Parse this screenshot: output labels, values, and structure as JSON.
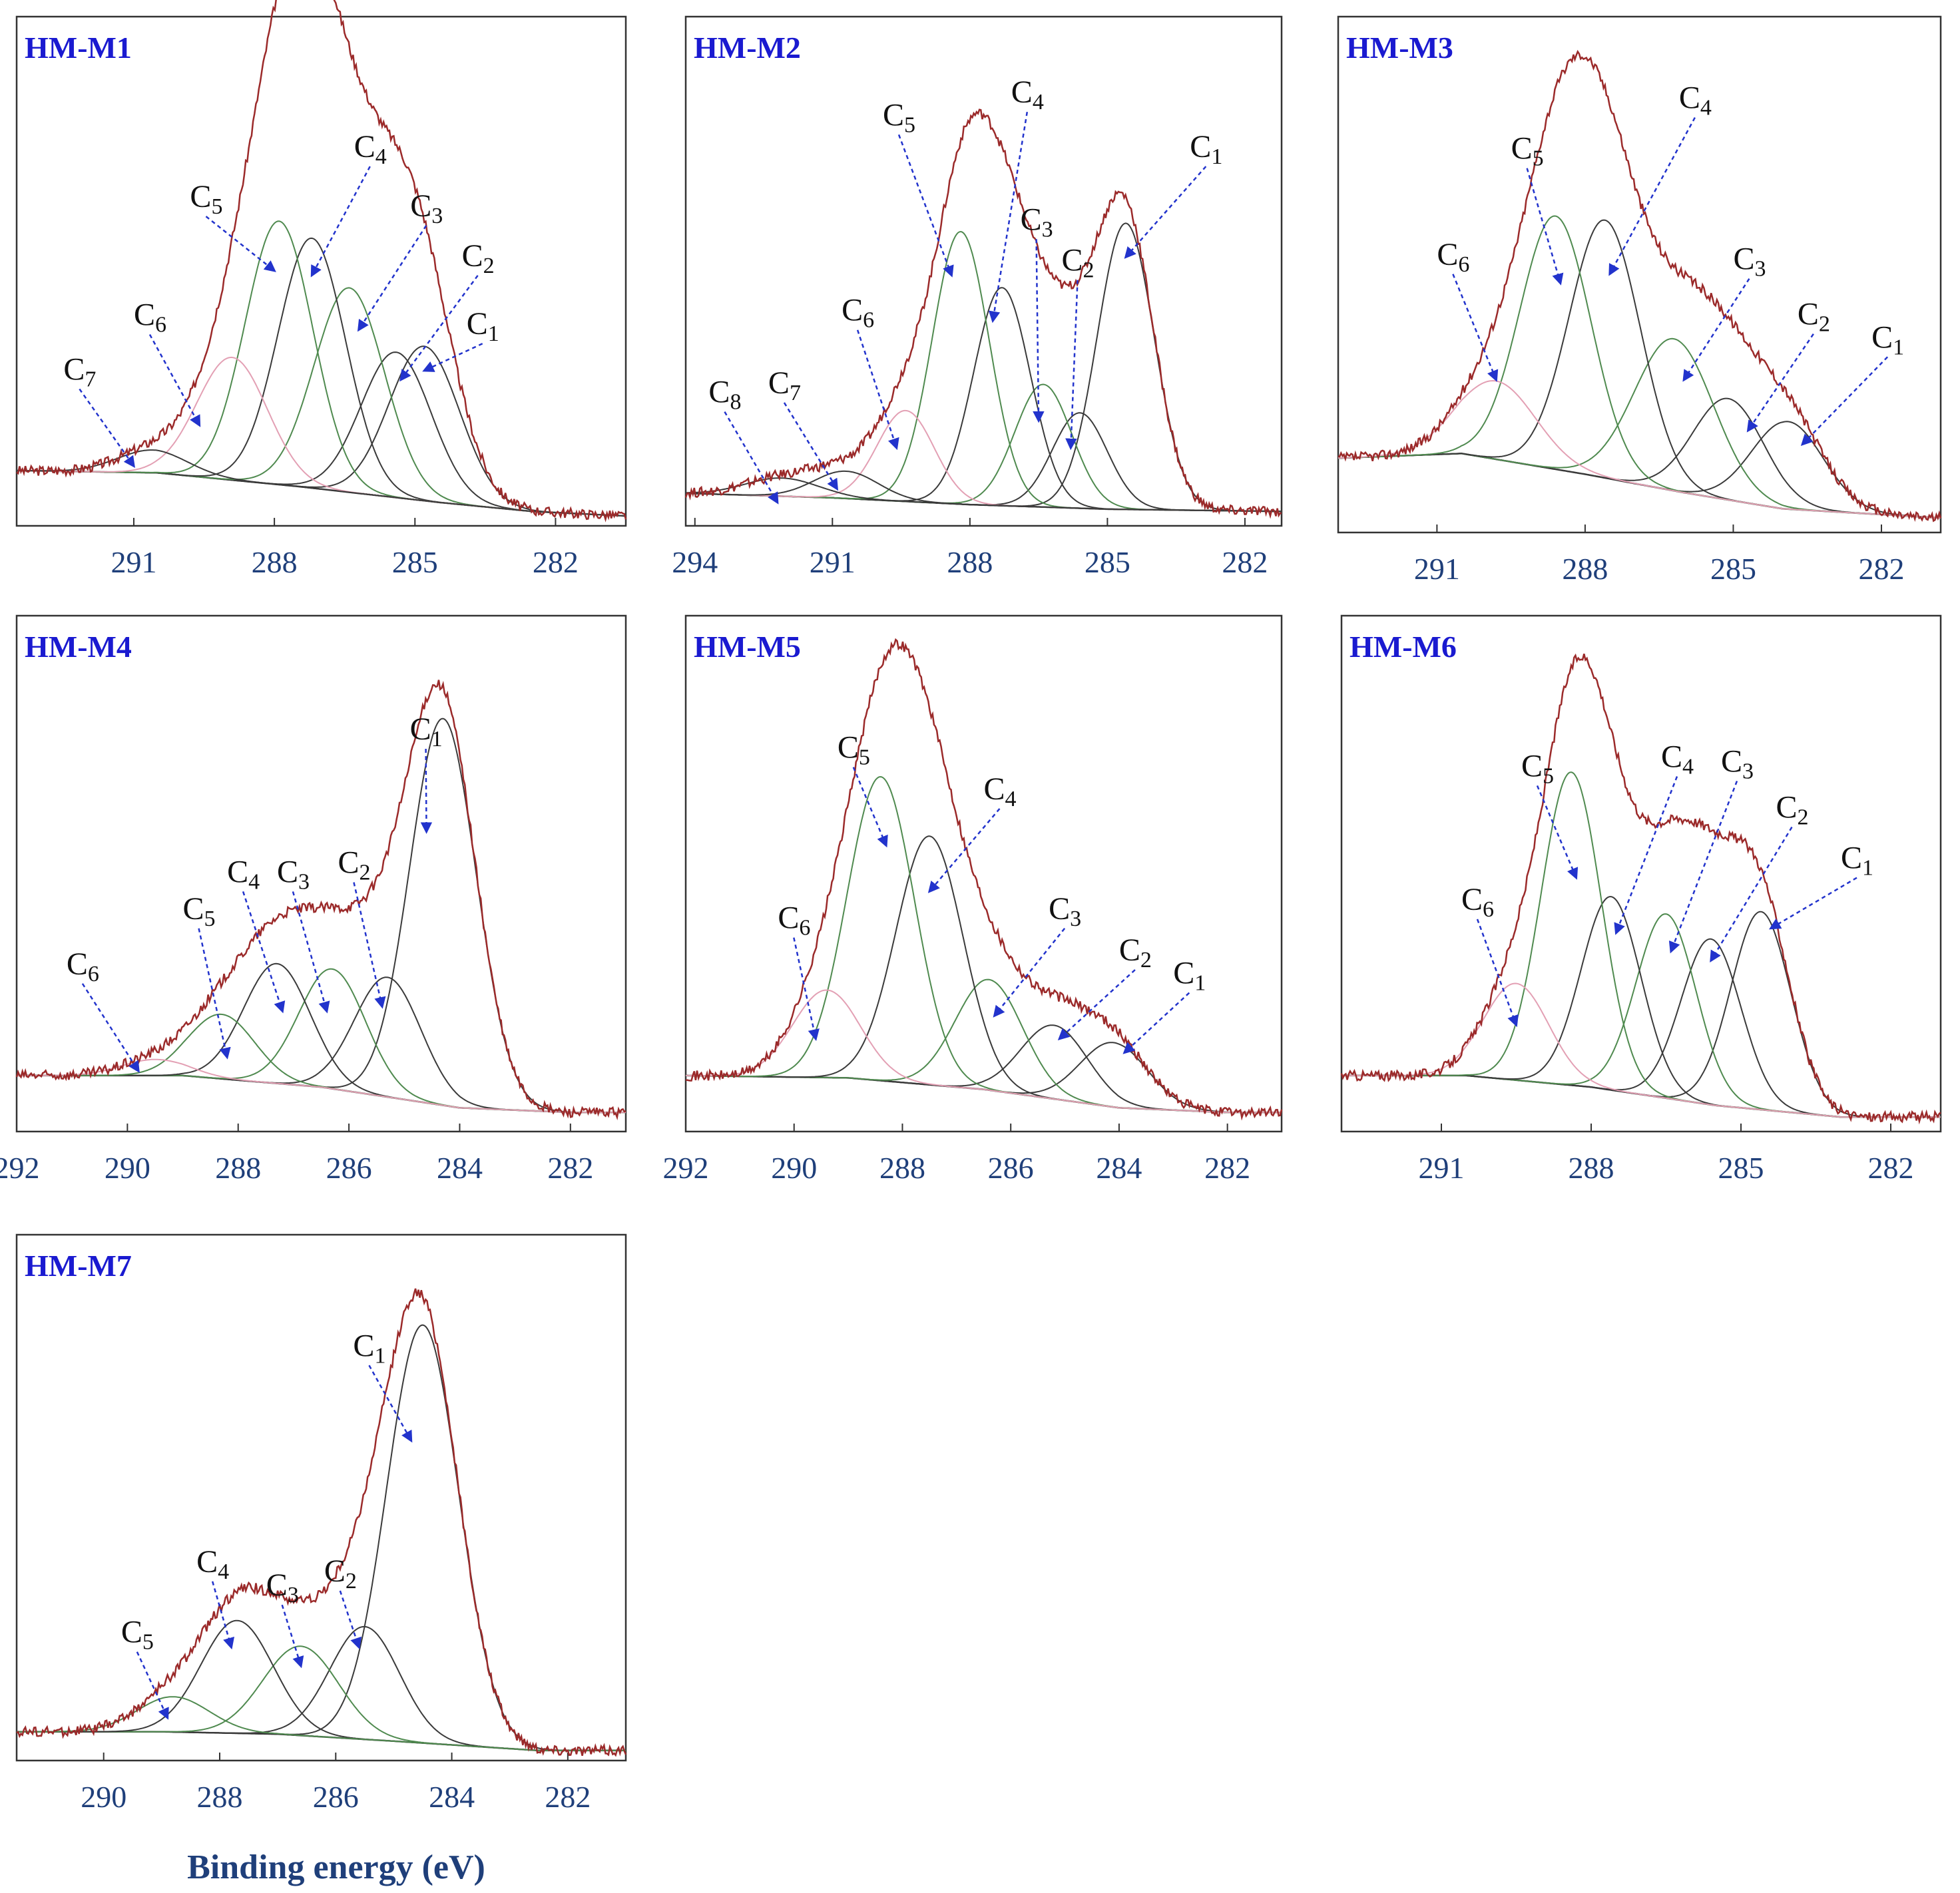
{
  "colors": {
    "envelope": "#9b2a2a",
    "baseline": "#333333",
    "title": "#1a1ad0",
    "arrow": "#2233cc",
    "tick_text": "#1f3f7a",
    "component_dark": "#3a3a3a",
    "component_green": "#4f8a4f",
    "component_pink": "#e3a0b4"
  },
  "shared_xlabel": "Binding energy (eV)",
  "chart_data": [
    {
      "type": "line",
      "title": "HM-M1",
      "xlim": [
        293.5,
        280.5
      ],
      "ylim": [
        0,
        1.08
      ],
      "xticks": [
        291,
        288,
        285,
        282
      ],
      "xtick_labels": [
        "291",
        "288",
        "285",
        "282"
      ],
      "baseline": [
        [
          293.5,
          0.11
        ],
        [
          290.5,
          0.105
        ],
        [
          287.5,
          0.075
        ],
        [
          284.5,
          0.04
        ],
        [
          282.5,
          0.02
        ],
        [
          280.5,
          0.01
        ]
      ],
      "tail_low": 0.11,
      "tail_high": 0.01,
      "envelope_note": "sum of components",
      "components": [
        {
          "label": "C1",
          "center": 284.8,
          "height": 0.34,
          "width": 0.75,
          "color": "#3a3a3a",
          "label_pos": [
            283.9,
            0.41
          ],
          "arrow_tip": [
            284.8,
            0.33
          ]
        },
        {
          "label": "C2",
          "center": 285.4,
          "height": 0.32,
          "width": 0.75,
          "color": "#3a3a3a",
          "label_pos": [
            284.0,
            0.56
          ],
          "arrow_tip": [
            285.3,
            0.31
          ]
        },
        {
          "label": "C3",
          "center": 286.4,
          "height": 0.45,
          "width": 0.75,
          "color": "#4f8a4f",
          "label_pos": [
            285.1,
            0.67
          ],
          "arrow_tip": [
            286.2,
            0.42
          ]
        },
        {
          "label": "C4",
          "center": 287.2,
          "height": 0.55,
          "width": 0.72,
          "color": "#3a3a3a",
          "label_pos": [
            286.3,
            0.8
          ],
          "arrow_tip": [
            287.2,
            0.54
          ]
        },
        {
          "label": "C5",
          "center": 287.9,
          "height": 0.58,
          "width": 0.72,
          "color": "#4f8a4f",
          "label_pos": [
            289.8,
            0.69
          ],
          "arrow_tip": [
            288.0,
            0.55
          ]
        },
        {
          "label": "C6",
          "center": 288.9,
          "height": 0.27,
          "width": 0.75,
          "color": "#e3a0b4",
          "label_pos": [
            291.0,
            0.43
          ],
          "arrow_tip": [
            289.6,
            0.21
          ]
        },
        {
          "label": "C7",
          "center": 290.6,
          "height": 0.05,
          "width": 0.75,
          "color": "#3a3a3a",
          "label_pos": [
            292.5,
            0.31
          ],
          "arrow_tip": [
            291.0,
            0.12
          ]
        }
      ]
    },
    {
      "type": "line",
      "title": "HM-M2",
      "xlim": [
        294.2,
        281.2
      ],
      "ylim": [
        0,
        1.08
      ],
      "xticks": [
        294,
        291,
        288,
        285,
        282
      ],
      "xtick_labels": [
        "294",
        "291",
        "288",
        "285",
        "282"
      ],
      "baseline": [
        [
          294.2,
          0.06
        ],
        [
          291.0,
          0.05
        ],
        [
          288.0,
          0.035
        ],
        [
          285.0,
          0.025
        ],
        [
          281.2,
          0.02
        ]
      ],
      "tail_low": 0.06,
      "tail_high": 0.02,
      "envelope_note": "sum of components",
      "components": [
        {
          "label": "C1",
          "center": 284.6,
          "height": 0.63,
          "width": 0.62,
          "color": "#3a3a3a",
          "label_pos": [
            283.2,
            0.8
          ],
          "arrow_tip": [
            284.6,
            0.58
          ]
        },
        {
          "label": "C2",
          "center": 285.6,
          "height": 0.21,
          "width": 0.6,
          "color": "#3a3a3a",
          "label_pos": [
            286.0,
            0.55
          ],
          "arrow_tip": [
            285.8,
            0.16
          ]
        },
        {
          "label": "C3",
          "center": 286.4,
          "height": 0.27,
          "width": 0.62,
          "color": "#4f8a4f",
          "label_pos": [
            286.9,
            0.64
          ],
          "arrow_tip": [
            286.5,
            0.22
          ]
        },
        {
          "label": "C4",
          "center": 287.3,
          "height": 0.48,
          "width": 0.62,
          "color": "#3a3a3a",
          "label_pos": [
            287.1,
            0.92
          ],
          "arrow_tip": [
            287.5,
            0.44
          ]
        },
        {
          "label": "C5",
          "center": 288.2,
          "height": 0.6,
          "width": 0.62,
          "color": "#4f8a4f",
          "label_pos": [
            289.9,
            0.87
          ],
          "arrow_tip": [
            288.4,
            0.54
          ]
        },
        {
          "label": "C6",
          "center": 289.4,
          "height": 0.2,
          "width": 0.62,
          "color": "#e3a0b4",
          "label_pos": [
            290.8,
            0.44
          ],
          "arrow_tip": [
            289.6,
            0.16
          ]
        },
        {
          "label": "C7",
          "center": 290.7,
          "height": 0.06,
          "width": 0.7,
          "color": "#3a3a3a",
          "label_pos": [
            292.4,
            0.28
          ],
          "arrow_tip": [
            290.9,
            0.07
          ]
        },
        {
          "label": "C8",
          "center": 292.1,
          "height": 0.04,
          "width": 0.8,
          "color": "#3a3a3a",
          "label_pos": [
            293.7,
            0.26
          ],
          "arrow_tip": [
            292.2,
            0.04
          ]
        }
      ]
    },
    {
      "type": "line",
      "title": "HM-M3",
      "xlim": [
        293.0,
        280.8
      ],
      "ylim": [
        0,
        1.08
      ],
      "xticks": [
        291,
        288,
        285,
        282
      ],
      "xtick_labels": [
        "291",
        "288",
        "285",
        "282"
      ],
      "baseline": [
        [
          293.0,
          0.15
        ],
        [
          290.5,
          0.16
        ],
        [
          288.0,
          0.115
        ],
        [
          286.0,
          0.075
        ],
        [
          284.0,
          0.04
        ],
        [
          280.8,
          0.02
        ]
      ],
      "tail_low": 0.15,
      "tail_high": 0.02,
      "envelope_note": "sum of components",
      "components": [
        {
          "label": "C1",
          "center": 283.9,
          "height": 0.19,
          "width": 0.72,
          "color": "#3a3a3a",
          "label_pos": [
            282.2,
            0.39
          ],
          "arrow_tip": [
            283.6,
            0.18
          ]
        },
        {
          "label": "C2",
          "center": 285.1,
          "height": 0.22,
          "width": 0.72,
          "color": "#3a3a3a",
          "label_pos": [
            283.7,
            0.44
          ],
          "arrow_tip": [
            284.7,
            0.21
          ]
        },
        {
          "label": "C3",
          "center": 286.2,
          "height": 0.33,
          "width": 0.8,
          "color": "#4f8a4f",
          "label_pos": [
            285.0,
            0.56
          ],
          "arrow_tip": [
            286.0,
            0.32
          ]
        },
        {
          "label": "C4",
          "center": 287.6,
          "height": 0.56,
          "width": 0.72,
          "color": "#3a3a3a",
          "label_pos": [
            286.1,
            0.91
          ],
          "arrow_tip": [
            287.5,
            0.55
          ]
        },
        {
          "label": "C5",
          "center": 288.6,
          "height": 0.55,
          "width": 0.72,
          "color": "#4f8a4f",
          "label_pos": [
            289.5,
            0.8
          ],
          "arrow_tip": [
            288.5,
            0.53
          ]
        },
        {
          "label": "C6",
          "center": 289.8,
          "height": 0.17,
          "width": 0.8,
          "color": "#e3a0b4",
          "label_pos": [
            291.0,
            0.57
          ],
          "arrow_tip": [
            289.8,
            0.32
          ]
        }
      ]
    },
    {
      "type": "line",
      "title": "HM-M4",
      "xlim": [
        292.0,
        281.0
      ],
      "ylim": [
        0,
        1.08
      ],
      "xticks": [
        292,
        290,
        288,
        286,
        284,
        282
      ],
      "xtick_labels": [
        "292",
        "290",
        "288",
        "286",
        "284",
        "282"
      ],
      "baseline": [
        [
          292.0,
          0.11
        ],
        [
          289.0,
          0.11
        ],
        [
          286.5,
          0.085
        ],
        [
          284.0,
          0.04
        ],
        [
          282.0,
          0.03
        ],
        [
          281.0,
          0.03
        ]
      ],
      "tail_low": 0.11,
      "tail_high": 0.03,
      "envelope_note": "sum of components",
      "components": [
        {
          "label": "C1",
          "center": 284.3,
          "height": 0.84,
          "width": 0.6,
          "color": "#3a3a3a",
          "label_pos": [
            284.9,
            0.84
          ],
          "arrow_tip": [
            284.6,
            0.64
          ]
        },
        {
          "label": "C2",
          "center": 285.3,
          "height": 0.26,
          "width": 0.6,
          "color": "#3a3a3a",
          "label_pos": [
            286.2,
            0.55
          ],
          "arrow_tip": [
            285.4,
            0.26
          ]
        },
        {
          "label": "C3",
          "center": 286.3,
          "height": 0.26,
          "width": 0.6,
          "color": "#4f8a4f",
          "label_pos": [
            287.3,
            0.53
          ],
          "arrow_tip": [
            286.4,
            0.25
          ]
        },
        {
          "label": "C4",
          "center": 287.3,
          "height": 0.26,
          "width": 0.6,
          "color": "#3a3a3a",
          "label_pos": [
            288.2,
            0.53
          ],
          "arrow_tip": [
            287.2,
            0.25
          ]
        },
        {
          "label": "C5",
          "center": 288.3,
          "height": 0.14,
          "width": 0.6,
          "color": "#4f8a4f",
          "label_pos": [
            289.0,
            0.45
          ],
          "arrow_tip": [
            288.2,
            0.15
          ]
        },
        {
          "label": "C6",
          "center": 289.5,
          "height": 0.035,
          "width": 0.6,
          "color": "#e3a0b4",
          "label_pos": [
            291.1,
            0.33
          ],
          "arrow_tip": [
            289.8,
            0.12
          ]
        }
      ]
    },
    {
      "type": "line",
      "title": "HM-M5",
      "xlim": [
        292.0,
        281.0
      ],
      "ylim": [
        0,
        1.08
      ],
      "xticks": [
        292,
        290,
        288,
        286,
        284,
        282
      ],
      "xtick_labels": [
        "292",
        "290",
        "288",
        "286",
        "284",
        "282"
      ],
      "baseline": [
        [
          292.0,
          0.11
        ],
        [
          289.0,
          0.105
        ],
        [
          286.5,
          0.08
        ],
        [
          284.0,
          0.04
        ],
        [
          282.0,
          0.03
        ],
        [
          281.0,
          0.03
        ]
      ],
      "tail_low": 0.11,
      "tail_high": 0.03,
      "envelope_note": "sum of components",
      "components": [
        {
          "label": "C1",
          "center": 284.1,
          "height": 0.14,
          "width": 0.62,
          "color": "#3a3a3a",
          "label_pos": [
            283.0,
            0.31
          ],
          "arrow_tip": [
            283.9,
            0.16
          ]
        },
        {
          "label": "C2",
          "center": 285.2,
          "height": 0.16,
          "width": 0.62,
          "color": "#3a3a3a",
          "label_pos": [
            284.0,
            0.36
          ],
          "arrow_tip": [
            285.1,
            0.19
          ]
        },
        {
          "label": "C3",
          "center": 286.4,
          "height": 0.24,
          "width": 0.62,
          "color": "#4f8a4f",
          "label_pos": [
            285.3,
            0.45
          ],
          "arrow_tip": [
            286.3,
            0.24
          ]
        },
        {
          "label": "C4",
          "center": 287.5,
          "height": 0.54,
          "width": 0.62,
          "color": "#3a3a3a",
          "label_pos": [
            286.5,
            0.71
          ],
          "arrow_tip": [
            287.5,
            0.51
          ]
        },
        {
          "label": "C5",
          "center": 288.4,
          "height": 0.66,
          "width": 0.62,
          "color": "#4f8a4f",
          "label_pos": [
            289.2,
            0.8
          ],
          "arrow_tip": [
            288.3,
            0.61
          ]
        },
        {
          "label": "C6",
          "center": 289.4,
          "height": 0.19,
          "width": 0.62,
          "color": "#e3a0b4",
          "label_pos": [
            290.3,
            0.43
          ],
          "arrow_tip": [
            289.6,
            0.19
          ]
        }
      ]
    },
    {
      "type": "line",
      "title": "HM-M6",
      "xlim": [
        293.0,
        281.0
      ],
      "ylim": [
        0,
        1.08
      ],
      "xticks": [
        291,
        288,
        285,
        282
      ],
      "xtick_labels": [
        "291",
        "288",
        "285",
        "282"
      ],
      "baseline": [
        [
          293.0,
          0.11
        ],
        [
          290.5,
          0.11
        ],
        [
          288.0,
          0.085
        ],
        [
          285.5,
          0.045
        ],
        [
          283.0,
          0.02
        ],
        [
          281.0,
          0.02
        ]
      ],
      "tail_low": 0.11,
      "tail_high": 0.02,
      "envelope_note": "sum of components",
      "components": [
        {
          "label": "C1",
          "center": 284.6,
          "height": 0.43,
          "width": 0.6,
          "color": "#3a3a3a",
          "label_pos": [
            283.0,
            0.56
          ],
          "arrow_tip": [
            284.4,
            0.43
          ]
        },
        {
          "label": "C2",
          "center": 285.6,
          "height": 0.36,
          "width": 0.6,
          "color": "#3a3a3a",
          "label_pos": [
            284.3,
            0.67
          ],
          "arrow_tip": [
            285.6,
            0.36
          ]
        },
        {
          "label": "C3",
          "center": 286.5,
          "height": 0.4,
          "width": 0.6,
          "color": "#4f8a4f",
          "label_pos": [
            285.4,
            0.77
          ],
          "arrow_tip": [
            286.4,
            0.38
          ]
        },
        {
          "label": "C4",
          "center": 287.6,
          "height": 0.42,
          "width": 0.6,
          "color": "#3a3a3a",
          "label_pos": [
            286.6,
            0.78
          ],
          "arrow_tip": [
            287.5,
            0.42
          ]
        },
        {
          "label": "C5",
          "center": 288.4,
          "height": 0.68,
          "width": 0.6,
          "color": "#4f8a4f",
          "label_pos": [
            289.4,
            0.76
          ],
          "arrow_tip": [
            288.3,
            0.54
          ]
        },
        {
          "label": "C6",
          "center": 289.5,
          "height": 0.21,
          "width": 0.65,
          "color": "#e3a0b4",
          "label_pos": [
            290.6,
            0.47
          ],
          "arrow_tip": [
            289.5,
            0.22
          ]
        }
      ]
    },
    {
      "type": "line",
      "title": "HM-M7",
      "xlim": [
        291.5,
        281.0
      ],
      "ylim": [
        0,
        1.08
      ],
      "xticks": [
        290,
        288,
        286,
        284,
        282
      ],
      "xtick_labels": [
        "290",
        "288",
        "286",
        "284",
        "282"
      ],
      "baseline": [
        [
          291.5,
          0.05
        ],
        [
          289.0,
          0.05
        ],
        [
          287.0,
          0.045
        ],
        [
          285.0,
          0.03
        ],
        [
          282.5,
          0.01
        ],
        [
          281.0,
          0.01
        ]
      ],
      "tail_low": 0.05,
      "tail_high": 0.01,
      "envelope_note": "sum of components",
      "components": [
        {
          "label": "C1",
          "center": 284.5,
          "height": 0.89,
          "width": 0.62,
          "color": "#3a3a3a",
          "label_pos": [
            285.7,
            0.85
          ],
          "arrow_tip": [
            284.7,
            0.67
          ]
        },
        {
          "label": "C2",
          "center": 285.5,
          "height": 0.24,
          "width": 0.6,
          "color": "#3a3a3a",
          "label_pos": [
            286.2,
            0.37
          ],
          "arrow_tip": [
            285.6,
            0.23
          ]
        },
        {
          "label": "C3",
          "center": 286.6,
          "height": 0.19,
          "width": 0.65,
          "color": "#4f8a4f",
          "label_pos": [
            287.2,
            0.34
          ],
          "arrow_tip": [
            286.6,
            0.19
          ]
        },
        {
          "label": "C4",
          "center": 287.7,
          "height": 0.24,
          "width": 0.62,
          "color": "#3a3a3a",
          "label_pos": [
            288.4,
            0.39
          ],
          "arrow_tip": [
            287.8,
            0.23
          ]
        },
        {
          "label": "C5",
          "center": 288.8,
          "height": 0.075,
          "width": 0.62,
          "color": "#4f8a4f",
          "label_pos": [
            289.7,
            0.24
          ],
          "arrow_tip": [
            288.9,
            0.08
          ]
        }
      ]
    }
  ]
}
